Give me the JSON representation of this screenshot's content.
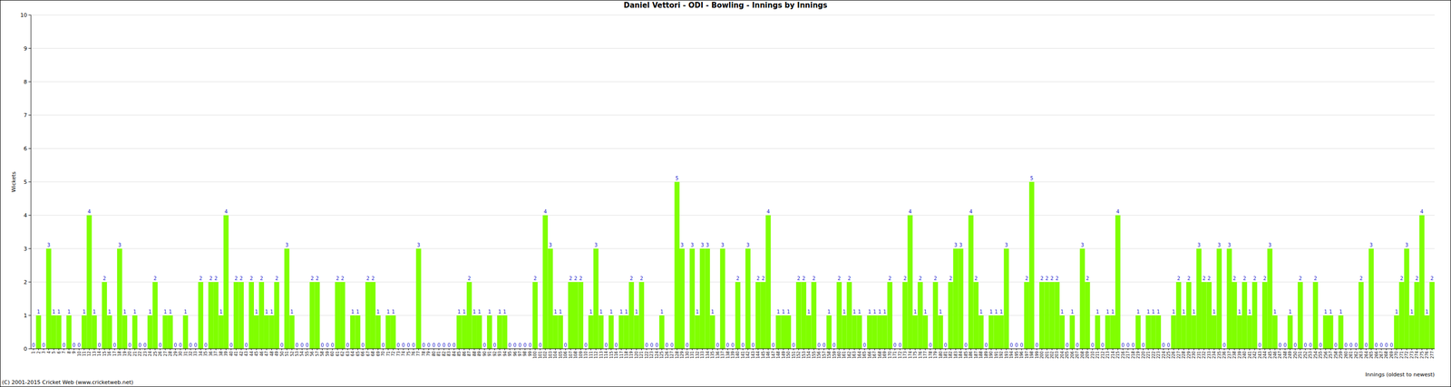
{
  "chart_data": {
    "type": "bar",
    "title": "Daniel Vettori - ODI - Bowling - Innings by Innings",
    "x_label": "Innings (oldest to newest)",
    "y_label": "Wickets",
    "annotations": [
      "(C) 2001-2015 Cricket Web (www.cricketweb.net)"
    ],
    "categories": [
      "1",
      "2",
      "3",
      "4",
      "5",
      "6",
      "7",
      "8",
      "9",
      "10",
      "11",
      "12",
      "13",
      "14",
      "15",
      "16",
      "17",
      "18",
      "19",
      "20",
      "21",
      "22",
      "23",
      "24",
      "25",
      "26",
      "27",
      "28",
      "29",
      "30",
      "31",
      "32",
      "33",
      "34",
      "35",
      "36",
      "37",
      "38",
      "39",
      "40",
      "41",
      "42",
      "43",
      "44",
      "45",
      "46",
      "47",
      "48",
      "49",
      "50",
      "51",
      "52",
      "53",
      "54",
      "55",
      "56",
      "57",
      "58",
      "59",
      "60",
      "61",
      "62",
      "63",
      "64",
      "65",
      "66",
      "67",
      "68",
      "69",
      "70",
      "71",
      "72",
      "73",
      "74",
      "75",
      "76",
      "77",
      "78",
      "79",
      "80",
      "81",
      "82",
      "83",
      "84",
      "85",
      "86",
      "87",
      "88",
      "89",
      "90",
      "91",
      "92",
      "93",
      "94",
      "95",
      "96",
      "97",
      "98",
      "99",
      "100",
      "101",
      "102",
      "103",
      "104",
      "105",
      "106",
      "107",
      "108",
      "109",
      "110",
      "111",
      "112",
      "113",
      "114",
      "115",
      "116",
      "117",
      "118",
      "119",
      "120",
      "121",
      "122",
      "123",
      "124",
      "125",
      "126",
      "127",
      "128",
      "129",
      "130",
      "131",
      "132",
      "133",
      "134",
      "135",
      "136",
      "137",
      "138",
      "139",
      "140",
      "141",
      "142",
      "143",
      "144",
      "145",
      "146",
      "147",
      "148",
      "149",
      "150",
      "151",
      "152",
      "153",
      "154",
      "155",
      "156",
      "157",
      "158",
      "159",
      "160",
      "161",
      "162",
      "163",
      "164",
      "165",
      "166",
      "167",
      "168",
      "169",
      "170",
      "171",
      "172",
      "173",
      "174",
      "175",
      "176",
      "177",
      "178",
      "179",
      "180",
      "181",
      "182",
      "183",
      "184",
      "185",
      "186",
      "187",
      "188",
      "189",
      "190",
      "191",
      "192",
      "193",
      "194",
      "195",
      "196",
      "197",
      "198",
      "199",
      "200",
      "201",
      "202",
      "203",
      "204",
      "205",
      "206",
      "207",
      "208",
      "209",
      "210",
      "211",
      "212",
      "213",
      "214",
      "215",
      "216",
      "217",
      "218",
      "219",
      "220",
      "221",
      "222",
      "223",
      "224",
      "225",
      "226",
      "227",
      "228",
      "229",
      "230",
      "231",
      "232",
      "233",
      "234",
      "235",
      "236",
      "237",
      "238",
      "239",
      "240",
      "241",
      "242",
      "243",
      "244",
      "245",
      "246",
      "247",
      "248",
      "249",
      "250",
      "251",
      "252",
      "253",
      "254",
      "255",
      "256",
      "257",
      "258",
      "259",
      "260",
      "261",
      "262",
      "263",
      "264",
      "265",
      "266",
      "267",
      "268",
      "269",
      "270",
      "271",
      "272",
      "273",
      "274",
      "275",
      "276",
      "277"
    ],
    "values": [
      0,
      1,
      0,
      3,
      1,
      1,
      0,
      1,
      0,
      0,
      1,
      4,
      1,
      0,
      2,
      1,
      0,
      3,
      1,
      0,
      1,
      0,
      0,
      1,
      2,
      0,
      1,
      1,
      0,
      0,
      1,
      0,
      0,
      2,
      0,
      2,
      2,
      1,
      4,
      0,
      2,
      2,
      0,
      2,
      1,
      2,
      1,
      1,
      2,
      0,
      3,
      1,
      0,
      0,
      0,
      2,
      2,
      0,
      0,
      0,
      2,
      2,
      0,
      1,
      1,
      0,
      2,
      2,
      1,
      0,
      1,
      1,
      0,
      0,
      0,
      0,
      3,
      0,
      0,
      0,
      0,
      0,
      0,
      0,
      1,
      1,
      2,
      1,
      1,
      0,
      1,
      0,
      1,
      1,
      0,
      0,
      0,
      0,
      0,
      2,
      0,
      4,
      3,
      1,
      1,
      0,
      2,
      2,
      2,
      0,
      1,
      3,
      1,
      0,
      1,
      0,
      1,
      1,
      2,
      1,
      2,
      0,
      0,
      0,
      1,
      0,
      0,
      5,
      3,
      0,
      3,
      1,
      3,
      3,
      1,
      0,
      3,
      0,
      0,
      2,
      0,
      3,
      0,
      2,
      2,
      4,
      0,
      1,
      1,
      1,
      0,
      2,
      2,
      1,
      2,
      0,
      0,
      1,
      0,
      2,
      1,
      2,
      1,
      1,
      0,
      1,
      1,
      1,
      1,
      2,
      0,
      0,
      2,
      4,
      1,
      2,
      1,
      0,
      2,
      1,
      0,
      2,
      3,
      3,
      0,
      4,
      2,
      1,
      0,
      1,
      1,
      1,
      3,
      0,
      0,
      0,
      2,
      5,
      0,
      2,
      2,
      2,
      2,
      1,
      0,
      1,
      0,
      3,
      2,
      0,
      1,
      0,
      1,
      1,
      4,
      0,
      0,
      0,
      1,
      0,
      1,
      1,
      1,
      0,
      0,
      1,
      2,
      1,
      2,
      1,
      3,
      2,
      2,
      1,
      3,
      0,
      3,
      2,
      1,
      2,
      1,
      2,
      0,
      2,
      3,
      1,
      0,
      0,
      1,
      0,
      2,
      0,
      0,
      2,
      0,
      1,
      1,
      0,
      1,
      0,
      0,
      0,
      2,
      0,
      3,
      0,
      0,
      0,
      0,
      1,
      2,
      3,
      1,
      2,
      4,
      1,
      2
    ],
    "color": "#80ff00",
    "ylim": [
      0,
      10
    ],
    "yticks": [
      0,
      1,
      2,
      3,
      4,
      5,
      6,
      7,
      8,
      9,
      10
    ],
    "grid": true,
    "data_labels": true
  }
}
